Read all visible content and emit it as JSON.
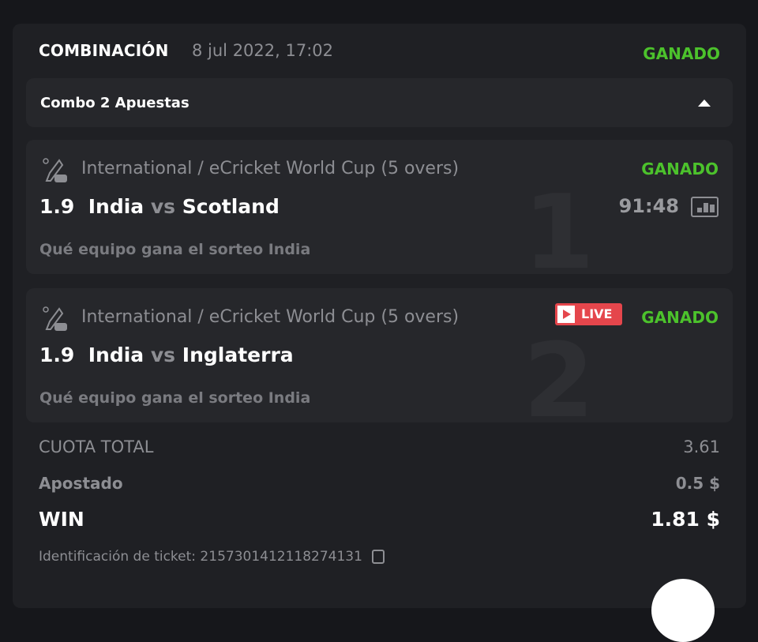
{
  "header": {
    "title": "COMBINACIÓN",
    "date": "8 jul 2022, 17:02",
    "status": "GANADO"
  },
  "combo": {
    "label": "Combo 2 Apuestas",
    "icon": "caret-up-icon"
  },
  "bets": [
    {
      "index": "1",
      "league": "International / eCricket World Cup (5 overs)",
      "status": "GANADO",
      "odds": "1.9",
      "home": "India",
      "vs": "vs",
      "away": "Scotland",
      "time": "91:48",
      "market": "Qué equipo gana el sorteo India",
      "icon": "ecricket-icon"
    },
    {
      "index": "2",
      "league": "International / eCricket World Cup (5 overs)",
      "status": "GANADO",
      "live": "LIVE",
      "odds": "1.9",
      "home": "India",
      "vs": "vs",
      "away": "Inglaterra",
      "market": "Qué equipo gana el sorteo India",
      "icon": "ecricket-icon"
    }
  ],
  "summary": {
    "total_odds_label": "CUOTA TOTAL",
    "total_odds": "3.61",
    "stake_label": "Apostado",
    "stake": "0.5 $",
    "win_label": "WIN",
    "win": "1.81 $",
    "ticket_label": "Identificación de ticket: 2157301412118274131"
  },
  "colors": {
    "won": "#4cc22c",
    "live": "#e5464c",
    "card": "#1f2024",
    "panel": "#26272b"
  }
}
